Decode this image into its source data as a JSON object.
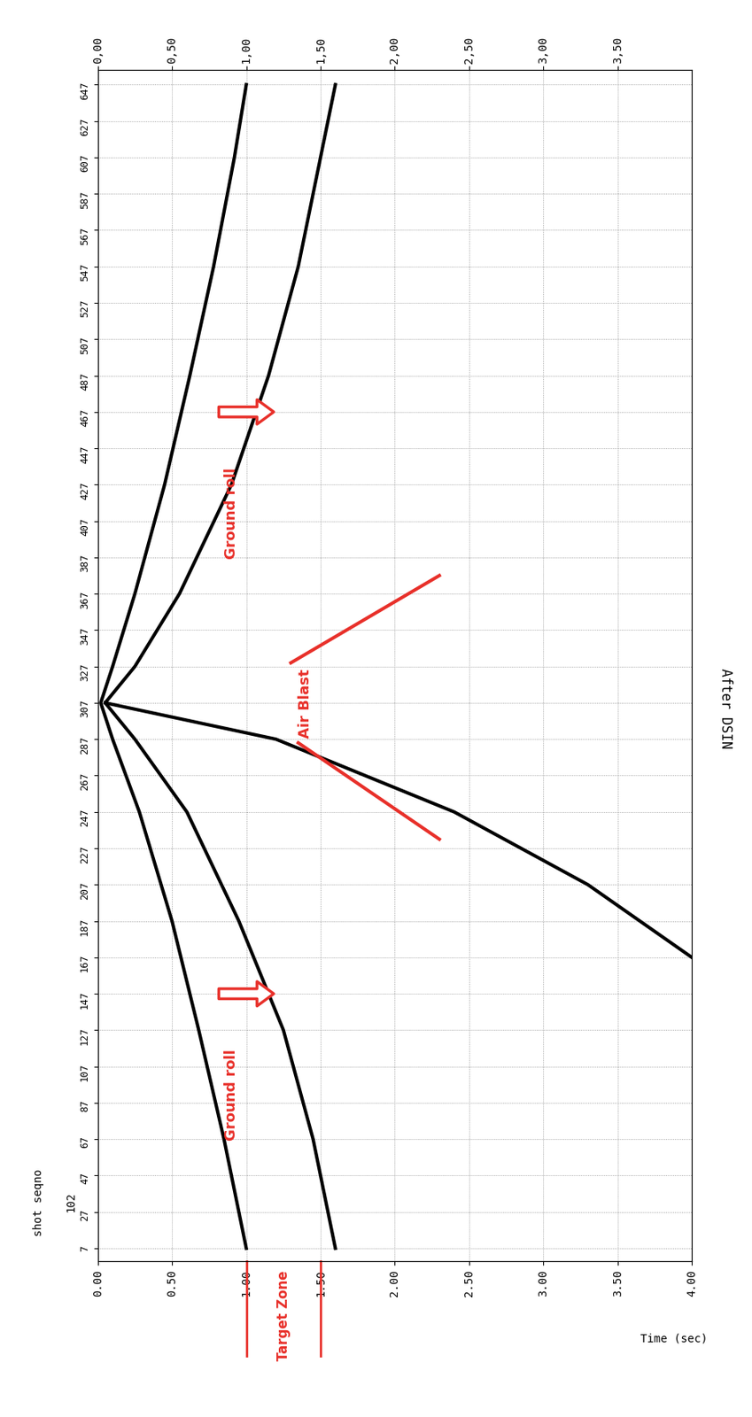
{
  "chart_data": {
    "type": "seismic_gather",
    "title": "After DSIN",
    "xlabel": "Time (sec)",
    "ylabel": "shot seqno",
    "ylabel_note": "102",
    "xlim": [
      0,
      4
    ],
    "xticks": [
      {
        "value": 0,
        "label": "0.00"
      },
      {
        "value": 0.5,
        "label": "0.50"
      },
      {
        "value": 1,
        "label": "1.00"
      },
      {
        "value": 1.5,
        "label": "1.50"
      },
      {
        "value": 2,
        "label": "2.00"
      },
      {
        "value": 2.5,
        "label": "2.50"
      },
      {
        "value": 3,
        "label": "3.00"
      },
      {
        "value": 3.5,
        "label": "3.50"
      },
      {
        "value": 4,
        "label": "4.00"
      }
    ],
    "x2ticks": [
      {
        "value": 0,
        "label": "0,00"
      },
      {
        "value": 0.5,
        "label": "0,50"
      },
      {
        "value": 1,
        "label": "1,00"
      },
      {
        "value": 1.5,
        "label": "1,50"
      },
      {
        "value": 2,
        "label": "2,00"
      },
      {
        "value": 2.5,
        "label": "2,50"
      },
      {
        "value": 3,
        "label": "3,00"
      },
      {
        "value": 3.5,
        "label": "3,50"
      }
    ],
    "ylim": [
      0,
      655
    ],
    "yticks": [
      7,
      27,
      47,
      67,
      87,
      107,
      127,
      147,
      167,
      187,
      207,
      227,
      247,
      267,
      287,
      307,
      327,
      347,
      367,
      387,
      407,
      427,
      447,
      467,
      487,
      507,
      527,
      547,
      567,
      587,
      607,
      627,
      647
    ],
    "grid": true,
    "events": [
      {
        "type": "line",
        "color": "#000000",
        "x": [
          1.0,
          0.85,
          0.68,
          0.5,
          0.28,
          0.1,
          0.02,
          0.1,
          0.25,
          0.45,
          0.62,
          0.78,
          0.92,
          1.0
        ],
        "y": [
          7,
          67,
          127,
          187,
          247,
          287,
          307,
          327,
          367,
          427,
          487,
          547,
          607,
          647
        ]
      },
      {
        "type": "line",
        "color": "#000000",
        "x": [
          1.6,
          1.45,
          1.25,
          0.95,
          0.6,
          0.25,
          0.05,
          0.25,
          0.55,
          0.9,
          1.15,
          1.35,
          1.5,
          1.6
        ],
        "y": [
          7,
          67,
          127,
          187,
          247,
          287,
          307,
          327,
          367,
          427,
          487,
          547,
          607,
          647
        ]
      },
      {
        "type": "line",
        "color": "#000000",
        "x": [
          0.05,
          1.2,
          2.4,
          3.3,
          4.0
        ],
        "y": [
          307,
          287,
          247,
          207,
          167
        ]
      }
    ],
    "air_blast": {
      "text": "Air Blast",
      "color": "#e8302a",
      "lines": [
        {
          "x": [
            1.35,
            2.3
          ],
          "y": [
            285,
            232
          ]
        },
        {
          "x": [
            1.3,
            2.3
          ],
          "y": [
            329,
            377
          ]
        }
      ],
      "text_x": 1.4,
      "text_y": 307
    },
    "annotations": [
      {
        "text": "Ground roll",
        "x": 1.2,
        "y": 147,
        "text_x": 0.95,
        "text_y": 147,
        "color": "#e8302a"
      },
      {
        "text": "Ground roll",
        "x": 1.2,
        "y": 467,
        "text_x": 0.95,
        "text_y": 467,
        "color": "#e8302a"
      }
    ],
    "target_zone": {
      "text": "Target Zone",
      "from": 1.0,
      "to": 1.5,
      "color": "#e8302a"
    }
  }
}
